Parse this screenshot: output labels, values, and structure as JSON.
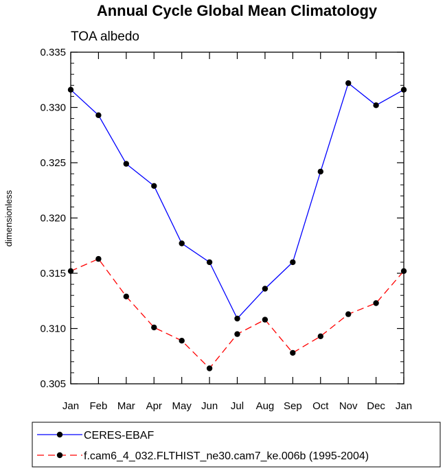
{
  "chart_data": {
    "type": "line",
    "title": "Annual Cycle Global Mean Climatology",
    "subtitle": "TOA albedo",
    "xlabel": "",
    "ylabel": "dimensionless",
    "categories": [
      "Jan",
      "Feb",
      "Mar",
      "Apr",
      "May",
      "Jun",
      "Jul",
      "Aug",
      "Sep",
      "Oct",
      "Nov",
      "Dec",
      "Jan"
    ],
    "ylim": [
      0.305,
      0.335
    ],
    "yticks": [
      "0.305",
      "0.310",
      "0.315",
      "0.320",
      "0.325",
      "0.330",
      "0.335"
    ],
    "yticks_values": [
      0.305,
      0.31,
      0.315,
      0.32,
      0.325,
      0.33,
      0.335
    ],
    "grid": false,
    "legend_position": "bottom",
    "series": [
      {
        "name": "CERES-EBAF",
        "color": "#0000ff",
        "dashed": false,
        "values": [
          0.3316,
          0.3293,
          0.3249,
          0.3229,
          0.3177,
          0.316,
          0.3109,
          0.3136,
          0.316,
          0.3242,
          0.3322,
          0.3302,
          0.3316
        ]
      },
      {
        "name": "f.cam6_4_032.FLTHIST_ne30.cam7_ke.006b (1995-2004)",
        "color": "#ff0000",
        "dashed": true,
        "values": [
          0.3152,
          0.3163,
          0.3129,
          0.3101,
          0.3089,
          0.3064,
          0.3095,
          0.3108,
          0.3078,
          0.3093,
          0.3113,
          0.3123,
          0.3152
        ]
      }
    ]
  }
}
